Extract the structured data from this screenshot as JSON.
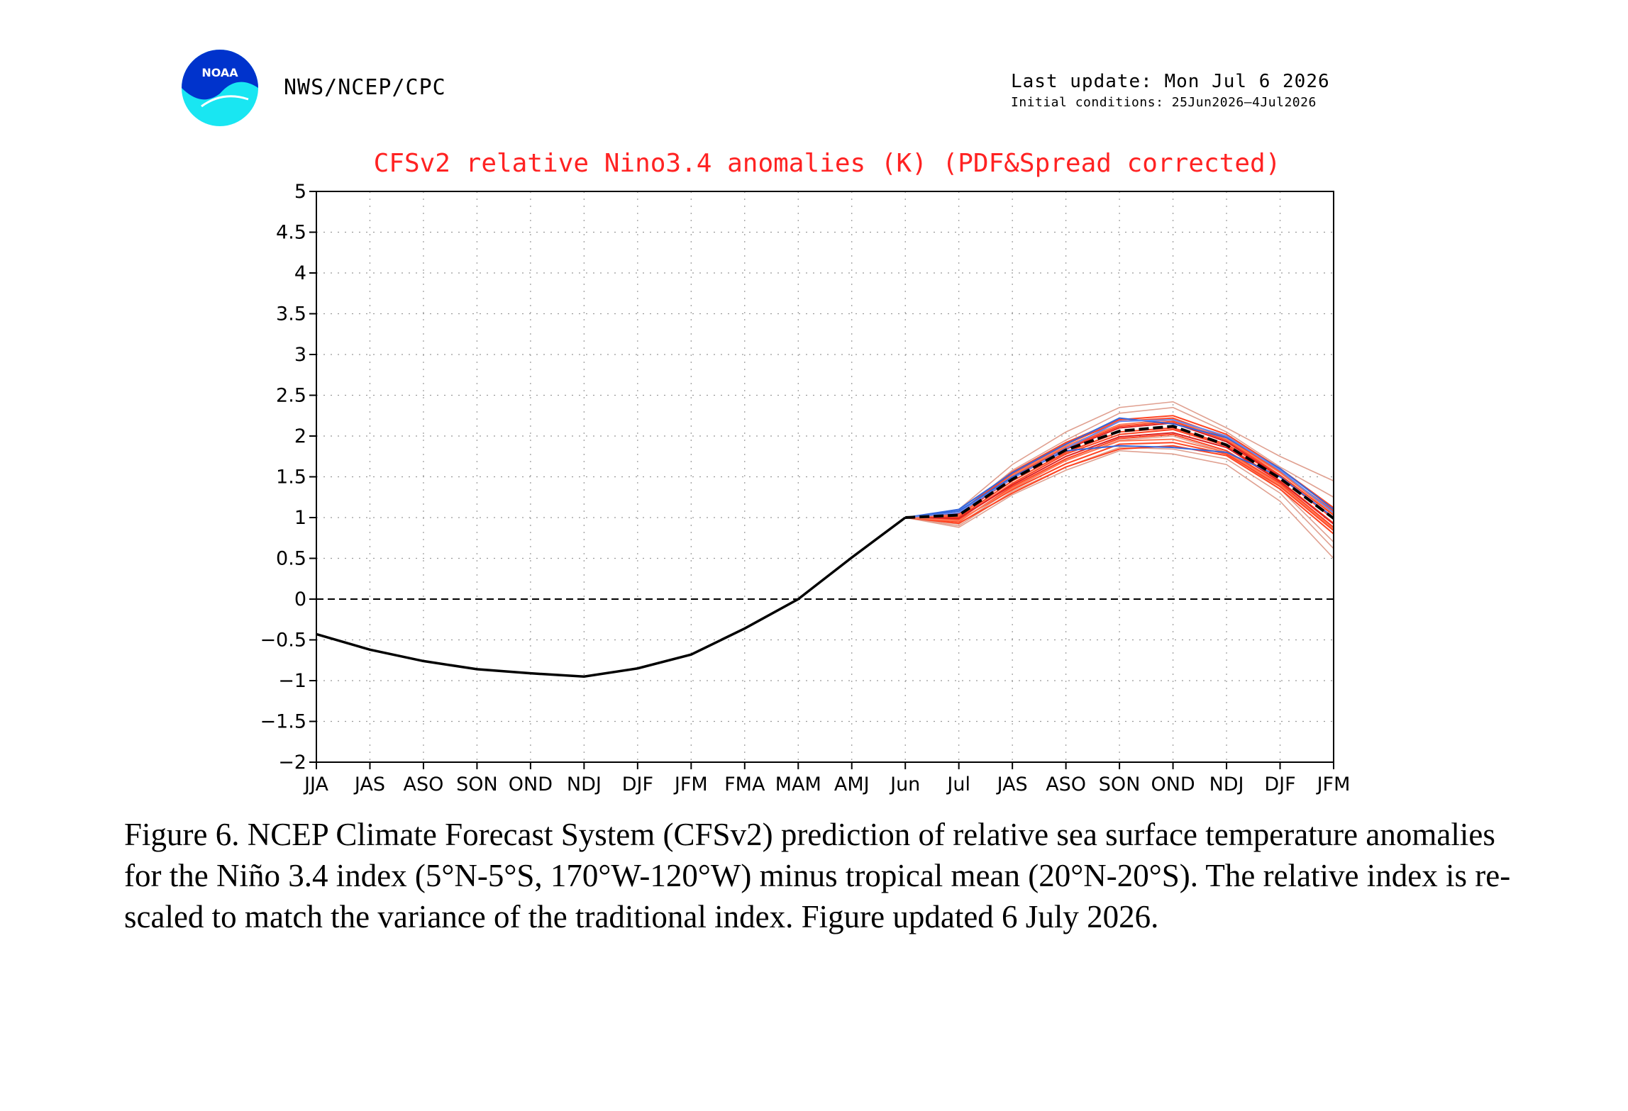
{
  "header": {
    "logo_text": "NOAA",
    "source": "NWS/NCEP/CPC",
    "last_update": "Last update: Mon Jul 6 2026",
    "initial_conditions": "Initial conditions: 25Jun2026–4Jul2026"
  },
  "chart_data": {
    "type": "line",
    "title": "CFSv2 relative Nino3.4 anomalies (K) (PDF&Spread corrected)",
    "xlabel": "",
    "ylabel": "",
    "categories": [
      "JJA",
      "JAS",
      "ASO",
      "SON",
      "OND",
      "NDJ",
      "DJF",
      "JFM",
      "FMA",
      "MAM",
      "AMJ",
      "Jun",
      "Jul",
      "JAS",
      "ASO",
      "SON",
      "OND",
      "NDJ",
      "DJF",
      "JFM"
    ],
    "ylim": [
      -2,
      5
    ],
    "y_ticks": [
      -2,
      -1.5,
      -1,
      -0.5,
      0,
      0.5,
      1,
      1.5,
      2,
      2.5,
      3,
      3.5,
      4,
      4.5,
      5
    ],
    "y_tick_labels": [
      "−2",
      "−1.5",
      "−1",
      "−0.5",
      "0",
      "0.5",
      "1",
      "1.5",
      "2",
      "2.5",
      "3",
      "3.5",
      "4",
      "4.5",
      "5"
    ],
    "grid": true,
    "zero_line": "dashed",
    "observed": {
      "color": "#000000",
      "values": [
        -0.43,
        -0.62,
        -0.76,
        -0.86,
        -0.91,
        -0.95,
        -0.85,
        -0.68,
        -0.36,
        0.0,
        0.51,
        1.0
      ]
    },
    "ensemble_mean": {
      "color": "#000000",
      "start_index": 11,
      "values": [
        1.0,
        1.03,
        1.47,
        1.83,
        2.06,
        2.12,
        1.89,
        1.48,
        0.99
      ]
    },
    "ensemble_members": {
      "start_index": 11,
      "members": [
        {
          "color": "#e0a090",
          "values": [
            1.0,
            0.88,
            1.28,
            1.58,
            1.82,
            1.78,
            1.65,
            1.2,
            0.5
          ]
        },
        {
          "color": "#e0a090",
          "values": [
            1.0,
            1.1,
            1.65,
            2.05,
            2.35,
            2.42,
            2.1,
            1.75,
            1.45
          ]
        },
        {
          "color": "#e0a090",
          "values": [
            1.0,
            0.92,
            1.35,
            1.7,
            1.95,
            2.0,
            1.8,
            1.35,
            0.7
          ]
        },
        {
          "color": "#e0a090",
          "values": [
            1.0,
            1.05,
            1.58,
            1.95,
            2.28,
            2.35,
            2.05,
            1.62,
            1.25
          ]
        },
        {
          "color": "#e0a090",
          "values": [
            1.0,
            0.9,
            1.32,
            1.62,
            1.86,
            1.84,
            1.72,
            1.3,
            0.62
          ]
        },
        {
          "color": "#ff4422",
          "values": [
            1.0,
            0.95,
            1.38,
            1.72,
            1.97,
            2.02,
            1.82,
            1.42,
            0.88
          ]
        },
        {
          "color": "#ff4422",
          "values": [
            1.0,
            0.98,
            1.42,
            1.78,
            2.02,
            2.08,
            1.88,
            1.45,
            0.93
          ]
        },
        {
          "color": "#ff4422",
          "values": [
            1.0,
            1.02,
            1.5,
            1.86,
            2.12,
            2.18,
            1.95,
            1.52,
            1.03
          ]
        },
        {
          "color": "#ff4422",
          "values": [
            1.0,
            1.05,
            1.54,
            1.9,
            2.18,
            2.22,
            1.98,
            1.56,
            1.08
          ]
        },
        {
          "color": "#ff4422",
          "values": [
            1.0,
            0.93,
            1.3,
            1.62,
            1.84,
            1.88,
            1.76,
            1.35,
            0.8
          ]
        },
        {
          "color": "#ff4422",
          "values": [
            1.0,
            0.97,
            1.34,
            1.66,
            1.9,
            1.92,
            1.78,
            1.38,
            0.84
          ]
        },
        {
          "color": "#ff4422",
          "values": [
            1.0,
            1.0,
            1.45,
            1.8,
            2.05,
            2.1,
            1.9,
            1.5,
            0.98
          ]
        },
        {
          "color": "#ff4422",
          "values": [
            1.0,
            1.06,
            1.56,
            1.92,
            2.2,
            2.25,
            2.02,
            1.6,
            1.12
          ]
        },
        {
          "color": "#dd2222",
          "values": [
            1.0,
            0.99,
            1.4,
            1.75,
            1.99,
            2.04,
            1.86,
            1.44,
            0.92
          ]
        },
        {
          "color": "#dd2222",
          "values": [
            1.0,
            1.04,
            1.48,
            1.84,
            2.1,
            2.16,
            1.93,
            1.5,
            1.0
          ]
        },
        {
          "color": "#ff7755",
          "values": [
            1.0,
            0.96,
            1.36,
            1.7,
            1.94,
            1.96,
            1.8,
            1.4,
            0.86
          ]
        },
        {
          "color": "#ff7755",
          "values": [
            1.0,
            1.03,
            1.52,
            1.88,
            2.14,
            2.2,
            1.96,
            1.55,
            1.05
          ]
        },
        {
          "color": "#3366dd",
          "values": [
            1.0,
            1.08,
            1.5,
            1.82,
            1.88,
            1.86,
            1.8,
            1.5,
            1.0
          ]
        },
        {
          "color": "#3366dd",
          "values": [
            1.0,
            1.1,
            1.55,
            1.9,
            2.22,
            2.15,
            1.98,
            1.6,
            1.1
          ]
        },
        {
          "color": "#6688ee",
          "values": [
            1.0,
            1.06,
            1.48,
            1.85,
            2.18,
            2.2,
            2.0,
            1.58,
            1.06
          ]
        }
      ]
    }
  },
  "caption": "Figure 6. NCEP Climate Forecast System (CFSv2) prediction of relative sea surface temperature anomalies for the Niño 3.4 index (5°N-5°S, 170°W-120°W) minus tropical mean (20°N-20°S). The relative index is re-scaled to match the variance of the traditional index. Figure updated 6 July 2026."
}
